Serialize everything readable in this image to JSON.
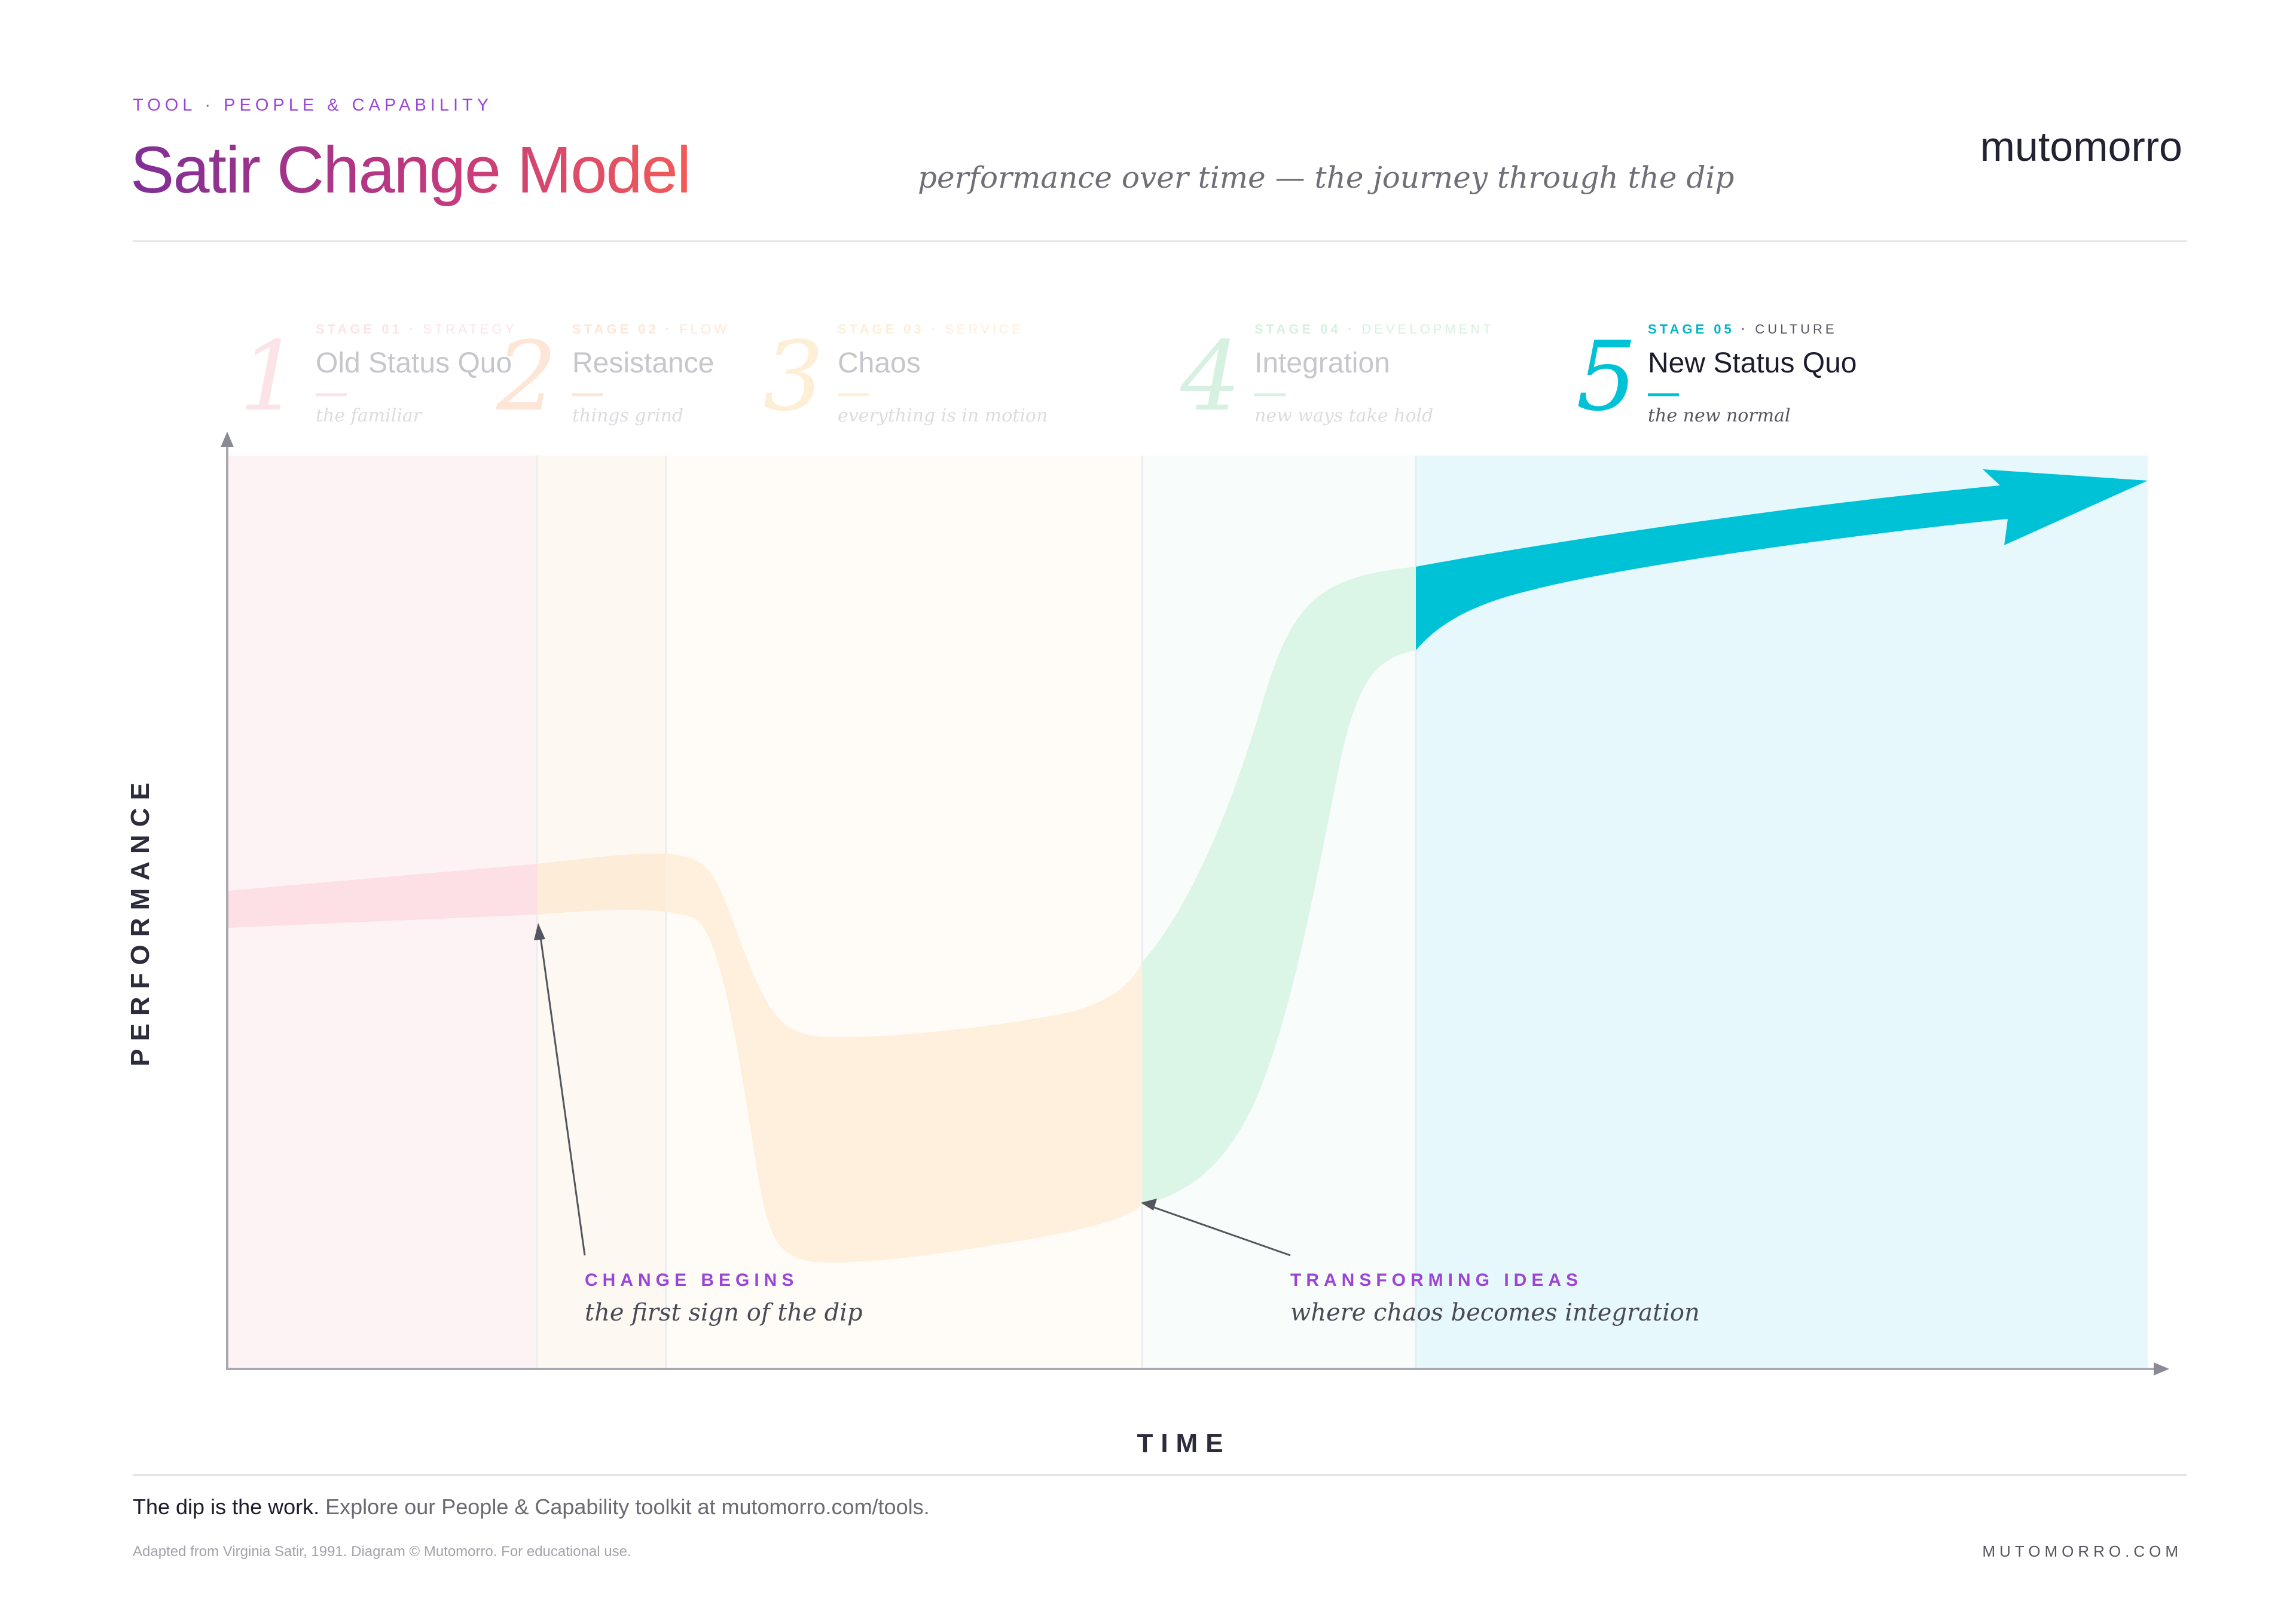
{
  "header": {
    "kicker": "TOOL · PEOPLE & CAPABILITY",
    "title": "Satir Change Model",
    "subtitle": "performance over time — the journey through the dip",
    "brand": "mutomorro"
  },
  "stages": [
    {
      "number": "1",
      "tag": "STAGE 01",
      "category": "STRATEGY",
      "name": "Old Status Quo",
      "description": "the familiar",
      "active": false,
      "color": "#f6c9d0"
    },
    {
      "number": "2",
      "tag": "STAGE 02",
      "category": "FLOW",
      "name": "Resistance",
      "description": "things grind",
      "active": false,
      "color": "#fad7bf"
    },
    {
      "number": "3",
      "tag": "STAGE 03",
      "category": "SERVICE",
      "name": "Chaos",
      "description": "everything is in motion",
      "active": false,
      "color": "#fbe4bf"
    },
    {
      "number": "4",
      "tag": "STAGE 04",
      "category": "DEVELOPMENT",
      "name": "Integration",
      "description": "new ways take hold",
      "active": false,
      "color": "#c9ecd6"
    },
    {
      "number": "5",
      "tag": "STAGE 05",
      "category": "CULTURE",
      "name": "New Status Quo",
      "description": "the new normal",
      "active": true,
      "color": "#00c2d6"
    }
  ],
  "axes": {
    "y_label": "PERFORMANCE",
    "x_label": "TIME"
  },
  "callouts": {
    "change_begins": {
      "title": "CHANGE BEGINS",
      "description": "the first sign of the dip"
    },
    "transforming_ideas": {
      "title": "TRANSFORMING IDEAS",
      "description": "where chaos becomes integration"
    }
  },
  "footer": {
    "tagline_bold": "The dip is the work.",
    "tagline_rest": " Explore our People & Capability toolkit at mutomorro.com/tools.",
    "credit": "Adapted from Virginia Satir, 1991. Diagram © Mutomorro. For educational use.",
    "site": "MUTOMORRO.COM"
  },
  "colors": {
    "accent": "#9b45d6",
    "stage1_zone": "#fdf3f5",
    "stage2_zone": "#fef8f3",
    "stage3_zone": "#fffcf8",
    "stage4_zone": "#f9fdfa",
    "stage5_zone": "#e8f8fc",
    "band_old": "#fde0e6",
    "band_resistance": "#fde8d4",
    "band_chaos": "#fef2dc",
    "band_integration": "#dbf5e6",
    "band_new": "#00c2d6"
  }
}
